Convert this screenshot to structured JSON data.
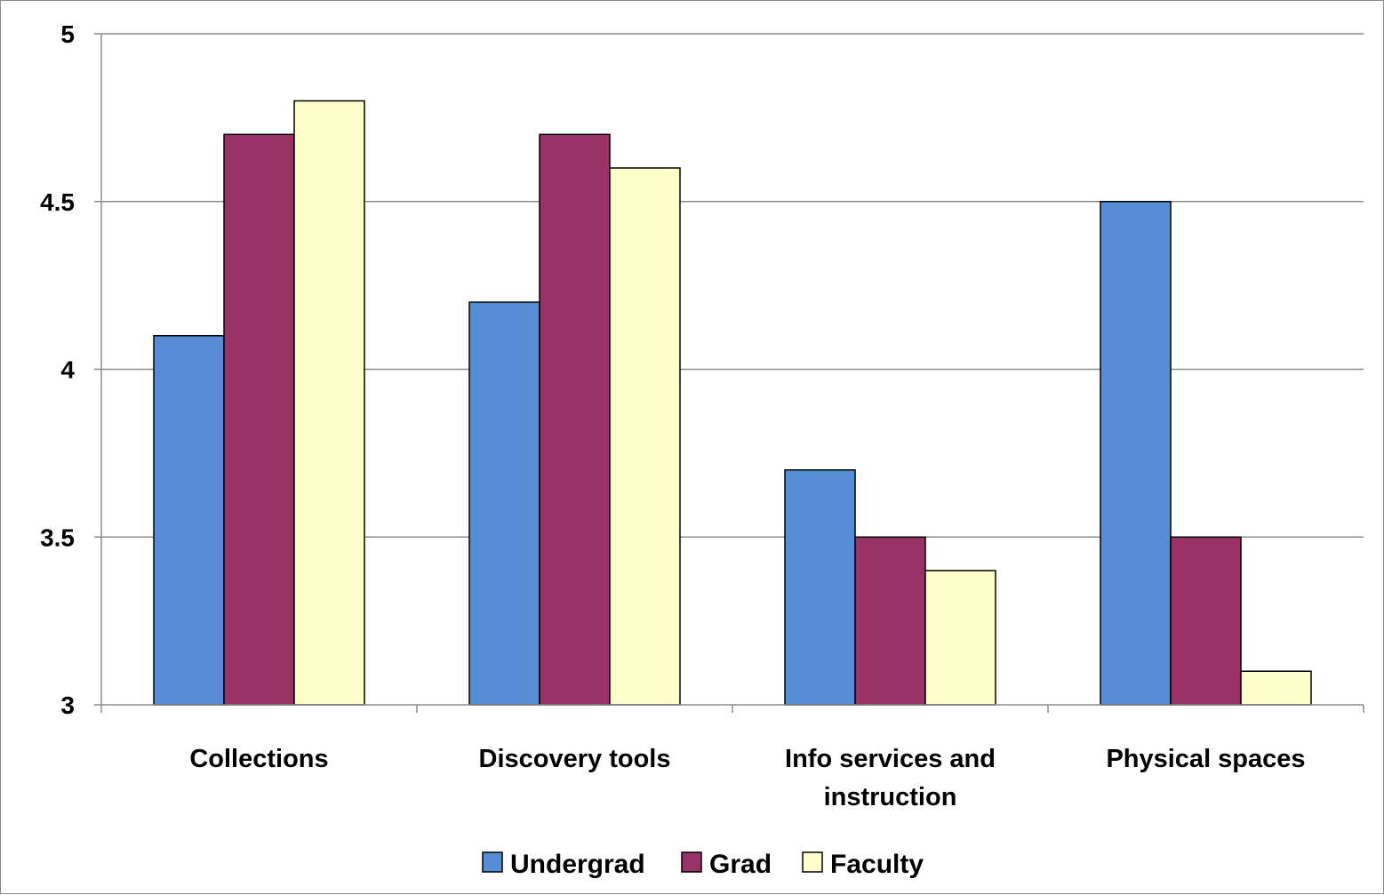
{
  "chart_data": {
    "type": "bar",
    "categories": [
      [
        "Collections"
      ],
      [
        "Discovery tools"
      ],
      [
        "Info services and",
        "instruction"
      ],
      [
        "Physical spaces"
      ]
    ],
    "series": [
      {
        "name": "Undergrad",
        "color": "#558ed5",
        "values": [
          4.1,
          4.2,
          3.7,
          4.5
        ]
      },
      {
        "name": "Grad",
        "color": "#993366",
        "values": [
          4.7,
          4.7,
          3.5,
          3.5
        ]
      },
      {
        "name": "Faculty",
        "color": "#ffffcc",
        "values": [
          4.8,
          4.6,
          3.4,
          3.1
        ]
      }
    ],
    "ylim": [
      3,
      5
    ],
    "yticks": [
      3,
      3.5,
      4,
      4.5,
      5
    ],
    "ytick_labels": [
      "3",
      "3.5",
      "4",
      "4.5",
      "5"
    ],
    "grid": true,
    "legend_position": "bottom",
    "title": "",
    "xlabel": "",
    "ylabel": ""
  }
}
